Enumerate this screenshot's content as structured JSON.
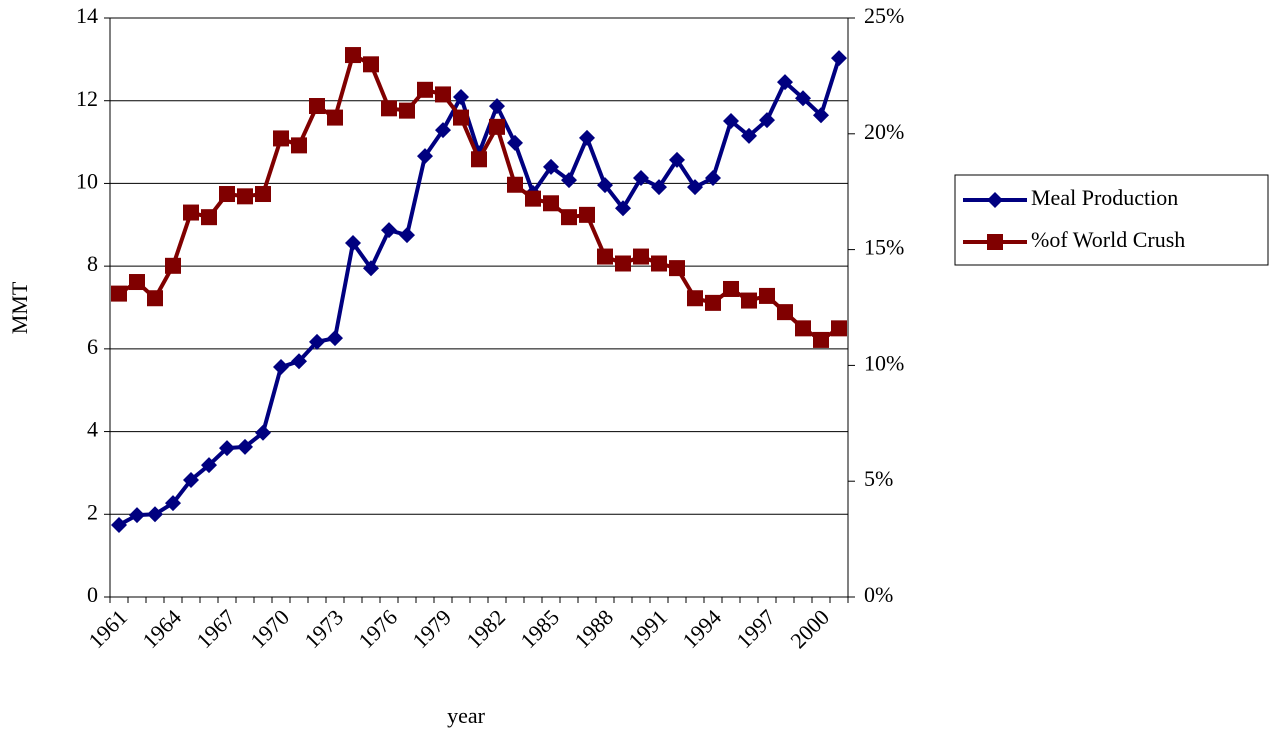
{
  "chart_data": {
    "type": "line",
    "categories": [
      "1961",
      null,
      null,
      "1964",
      null,
      null,
      "1967",
      null,
      null,
      "1970",
      null,
      null,
      "1973",
      null,
      null,
      "1976",
      null,
      null,
      "1979",
      null,
      null,
      "1982",
      null,
      null,
      "1985",
      null,
      null,
      "1988",
      null,
      null,
      "1991",
      null,
      null,
      "1994",
      null,
      null,
      "1997",
      null,
      null,
      "2000",
      null
    ],
    "x_label": "year",
    "y_label": "MMT",
    "series": [
      {
        "name": "Meal Production",
        "color": "#000080",
        "marker": "diamond",
        "values": [
          1.74,
          1.98,
          2.0,
          2.27,
          2.83,
          3.19,
          3.6,
          3.63,
          3.97,
          5.56,
          5.7,
          6.17,
          6.26,
          8.56,
          7.95,
          8.87,
          8.75,
          10.66,
          11.29,
          12.09,
          10.73,
          11.87,
          10.98,
          9.77,
          10.4,
          10.08,
          11.1,
          9.96,
          9.4,
          10.13,
          9.91,
          10.57,
          9.91,
          10.13,
          11.51,
          11.15,
          11.53,
          12.45,
          12.06,
          11.65,
          13.03
        ]
      },
      {
        "name": "%of World Crush",
        "color": "#800000",
        "marker": "square",
        "axis": "y2",
        "values": [
          13.1,
          13.6,
          12.9,
          14.3,
          16.6,
          16.4,
          17.4,
          17.3,
          17.4,
          19.8,
          19.5,
          21.2,
          20.7,
          23.4,
          23.0,
          21.1,
          21.0,
          21.9,
          21.7,
          20.7,
          18.9,
          20.3,
          17.8,
          17.2,
          17.0,
          16.4,
          16.5,
          14.7,
          14.4,
          14.7,
          14.4,
          14.2,
          12.9,
          12.7,
          13.3,
          12.8,
          13.0,
          12.3,
          11.6,
          11.1,
          11.6
        ]
      }
    ],
    "ylim": [
      0,
      14
    ],
    "yticks": [
      0,
      2,
      4,
      6,
      8,
      10,
      12,
      14
    ],
    "y2lim": [
      0,
      25
    ],
    "y2ticks": [
      {
        "value": 0,
        "label": "0%"
      },
      {
        "value": 5,
        "label": "5%"
      },
      {
        "value": 10,
        "label": "10%"
      },
      {
        "value": 15,
        "label": "15%"
      },
      {
        "value": 20,
        "label": "20%"
      },
      {
        "value": 25,
        "label": "25%"
      }
    ],
    "grid": true,
    "legend": "right"
  }
}
